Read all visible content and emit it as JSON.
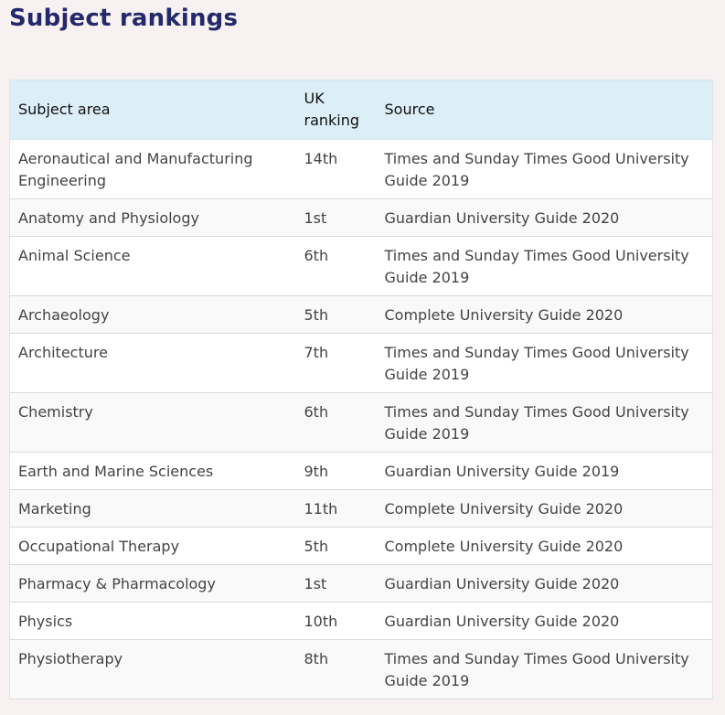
{
  "page": {
    "title": "Subject rankings"
  },
  "table": {
    "headers": {
      "subject": "Subject area",
      "ranking": "UK ranking",
      "source": "Source"
    },
    "rows": [
      {
        "subject": "Aeronautical and Manufacturing Engineering",
        "ranking": "14th",
        "source": "Times and Sunday Times Good University Guide 2019"
      },
      {
        "subject": "Anatomy and Physiology",
        "ranking": "1st",
        "source": "Guardian University Guide 2020"
      },
      {
        "subject": "Animal Science",
        "ranking": "6th",
        "source": "Times and Sunday Times Good University Guide 2019"
      },
      {
        "subject": "Archaeology",
        "ranking": "5th",
        "source": "Complete University Guide 2020"
      },
      {
        "subject": "Architecture",
        "ranking": "7th",
        "source": "Times and Sunday Times Good University Guide 2019"
      },
      {
        "subject": "Chemistry",
        "ranking": "6th",
        "source": "Times and Sunday Times Good University Guide 2019"
      },
      {
        "subject": "Earth and Marine Sciences",
        "ranking": "9th",
        "source": "Guardian University Guide 2019"
      },
      {
        "subject": "Marketing",
        "ranking": "11th",
        "source": "Complete University Guide 2020"
      },
      {
        "subject": "Occupational Therapy",
        "ranking": "5th",
        "source": "Complete University Guide 2020"
      },
      {
        "subject": "Pharmacy & Pharmacology",
        "ranking": "1st",
        "source": "Guardian University Guide 2020"
      },
      {
        "subject": "Physics",
        "ranking": "10th",
        "source": "Guardian University Guide 2020"
      },
      {
        "subject": "Physiotherapy",
        "ranking": "8th",
        "source": "Times and Sunday Times Good University Guide 2019"
      }
    ]
  }
}
